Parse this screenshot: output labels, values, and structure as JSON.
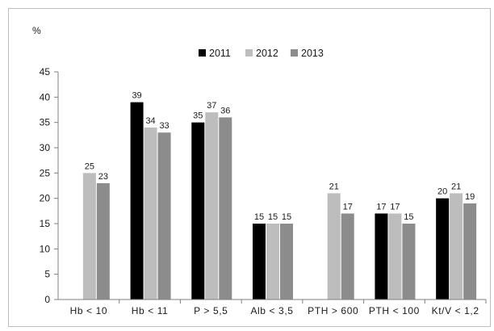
{
  "chart_data": {
    "type": "bar",
    "title": "",
    "xlabel": "",
    "ylabel": "%",
    "ylim": [
      0,
      45
    ],
    "yticks": [
      0,
      5,
      10,
      15,
      20,
      25,
      30,
      35,
      40,
      45
    ],
    "grid": false,
    "legend_position": "top-center",
    "categories": [
      "Hb < 10",
      "Hb < 11",
      "P > 5,5",
      "Alb < 3,5",
      "PTH > 600",
      "PTH < 100",
      "Kt/V < 1,2"
    ],
    "series": [
      {
        "name": "2011",
        "color": "#000000",
        "values": [
          null,
          39,
          35,
          15,
          null,
          17,
          20
        ]
      },
      {
        "name": "2012",
        "color": "#bdbdbd",
        "values": [
          25,
          34,
          37,
          15,
          21,
          17,
          21
        ]
      },
      {
        "name": "2013",
        "color": "#8c8c8c",
        "values": [
          23,
          33,
          36,
          15,
          17,
          15,
          19
        ]
      }
    ]
  }
}
